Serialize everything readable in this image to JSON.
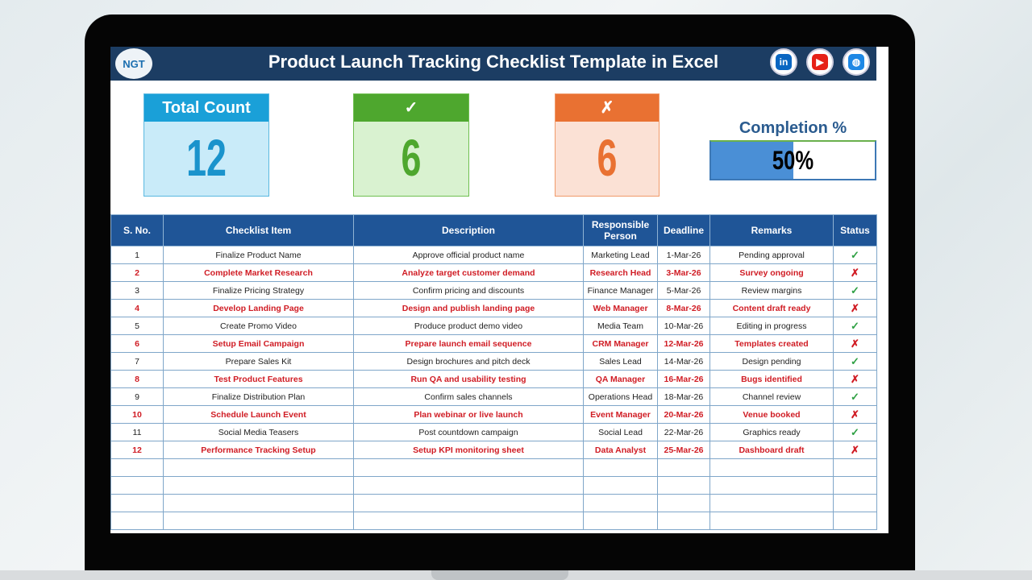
{
  "header": {
    "title": "Product Launch Tracking Checklist Template in Excel",
    "logo": "NGT",
    "social": [
      {
        "icon": "linkedin-icon",
        "label": "in",
        "color": "#0a66c2"
      },
      {
        "icon": "youtube-icon",
        "label": "▶",
        "color": "#e62117"
      },
      {
        "icon": "globe-icon",
        "label": "◍",
        "color": "#1e88e5"
      }
    ]
  },
  "cards": {
    "total": {
      "label": "Total Count",
      "value": "12"
    },
    "done": {
      "label": "✓",
      "value": "6"
    },
    "pending": {
      "label": "✗",
      "value": "6"
    }
  },
  "completion": {
    "label": "Completion %",
    "value": "50%",
    "percent": 50
  },
  "table": {
    "columns": [
      "S. No.",
      "Checklist Item",
      "Description",
      "Responsible Person",
      "Deadline",
      "Remarks",
      "Status"
    ],
    "rows": [
      [
        "1",
        "Finalize Product Name",
        "Approve official product name",
        "Marketing Lead",
        "1-Mar-26",
        "Pending approval",
        "✓"
      ],
      [
        "2",
        "Complete Market Research",
        "Analyze target customer demand",
        "Research Head",
        "3-Mar-26",
        "Survey ongoing",
        "✗"
      ],
      [
        "3",
        "Finalize Pricing Strategy",
        "Confirm pricing and discounts",
        "Finance Manager",
        "5-Mar-26",
        "Review margins",
        "✓"
      ],
      [
        "4",
        "Develop Landing Page",
        "Design and publish landing page",
        "Web Manager",
        "8-Mar-26",
        "Content draft ready",
        "✗"
      ],
      [
        "5",
        "Create Promo Video",
        "Produce product demo video",
        "Media Team",
        "10-Mar-26",
        "Editing in progress",
        "✓"
      ],
      [
        "6",
        "Setup Email Campaign",
        "Prepare launch email sequence",
        "CRM Manager",
        "12-Mar-26",
        "Templates created",
        "✗"
      ],
      [
        "7",
        "Prepare Sales Kit",
        "Design brochures and pitch deck",
        "Sales Lead",
        "14-Mar-26",
        "Design pending",
        "✓"
      ],
      [
        "8",
        "Test Product Features",
        "Run QA and usability testing",
        "QA Manager",
        "16-Mar-26",
        "Bugs identified",
        "✗"
      ],
      [
        "9",
        "Finalize Distribution Plan",
        "Confirm sales channels",
        "Operations Head",
        "18-Mar-26",
        "Channel review",
        "✓"
      ],
      [
        "10",
        "Schedule Launch Event",
        "Plan webinar or live launch",
        "Event Manager",
        "20-Mar-26",
        "Venue booked",
        "✗"
      ],
      [
        "11",
        "Social Media Teasers",
        "Post countdown campaign",
        "Social Lead",
        "22-Mar-26",
        "Graphics ready",
        "✓"
      ],
      [
        "12",
        "Performance Tracking Setup",
        "Setup KPI monitoring sheet",
        "Data Analyst",
        "25-Mar-26",
        "Dashboard draft",
        "✗"
      ]
    ]
  }
}
